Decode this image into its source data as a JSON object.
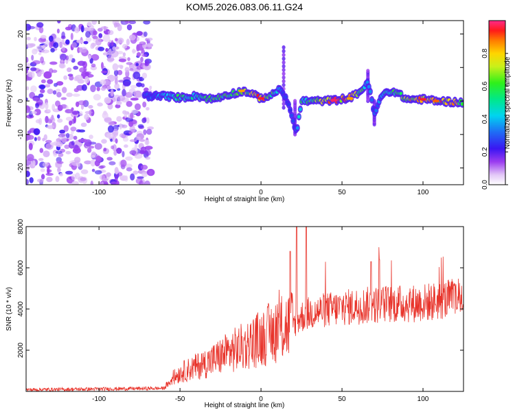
{
  "chart_data": [
    {
      "type": "heatmap",
      "title": "KOM5.2026.083.06.11.G24",
      "xlabel": "Height of straight line (km)",
      "ylabel": "Frequency (Hz)",
      "xlim": [
        -145,
        125
      ],
      "ylim": [
        -25,
        24
      ],
      "xticks": [
        -100,
        -50,
        0,
        50,
        100
      ],
      "xtick_labels": [
        "-100",
        "-50",
        "0",
        "50",
        "100"
      ],
      "yticks": [
        -20,
        -10,
        0,
        10,
        20
      ],
      "ytick_labels": [
        "-20",
        "-10",
        "0",
        "10",
        "20"
      ],
      "colorbar": {
        "label": "Normalized spectral amplitude",
        "range": [
          0,
          1
        ],
        "ticks": [
          0,
          0.2,
          0.4,
          0.6,
          0.8
        ],
        "tick_labels": [
          "0.0",
          "0.2",
          "0.4",
          "0.6",
          "0.8"
        ]
      },
      "noise_region_x": [
        -145,
        -70
      ],
      "ridge": {
        "x": [
          -72,
          -60,
          -50,
          -40,
          -30,
          -20,
          -10,
          0,
          8,
          12,
          16,
          20,
          22,
          25,
          35,
          45,
          55,
          62,
          66,
          70,
          75,
          82,
          90,
          100,
          110,
          125
        ],
        "freq": [
          1.5,
          1.5,
          1.0,
          1.5,
          0.5,
          2.0,
          3.0,
          0.8,
          2.0,
          4.0,
          0.0,
          -6.0,
          -9.5,
          0.0,
          0.0,
          0.2,
          1.0,
          3.0,
          6.0,
          -4.0,
          2.0,
          3.0,
          0.5,
          0.5,
          0.0,
          -0.5
        ],
        "amplitude": [
          0.3,
          0.45,
          0.6,
          0.5,
          0.65,
          0.6,
          0.7,
          0.95,
          0.6,
          0.4,
          0.3,
          0.3,
          0.35,
          0.55,
          0.7,
          0.98,
          0.9,
          0.7,
          0.4,
          0.3,
          0.5,
          0.6,
          0.8,
          0.95,
          0.9,
          0.8
        ]
      },
      "spikes": [
        {
          "x": 14,
          "freq_range": [
            -2,
            16
          ]
        },
        {
          "x": 21,
          "freq_range": [
            -10,
            0
          ]
        },
        {
          "x": 66,
          "freq_range": [
            0,
            9
          ]
        },
        {
          "x": 70,
          "freq_range": [
            -7,
            0
          ]
        }
      ]
    },
    {
      "type": "line",
      "xlabel": "Height of straight line (km)",
      "ylabel": "SNR (10 * v/v)",
      "xlim": [
        -145,
        125
      ],
      "ylim": [
        0,
        8000
      ],
      "xticks": [
        -100,
        -50,
        0,
        50,
        100
      ],
      "xtick_labels": [
        "-100",
        "-50",
        "0",
        "50",
        "100"
      ],
      "yticks": [
        2000,
        4000,
        6000,
        8000
      ],
      "ytick_labels": [
        "2000",
        "4000",
        "6000",
        "8000"
      ],
      "series": [
        {
          "name": "SNR",
          "color": "#e8332a",
          "x": [
            -145,
            -60,
            -55,
            -50,
            -40,
            -30,
            -20,
            -10,
            0,
            10,
            20,
            24,
            30,
            40,
            50,
            60,
            70,
            80,
            90,
            100,
            110,
            125
          ],
          "y": [
            80,
            150,
            600,
            900,
            1200,
            1500,
            1900,
            2200,
            2600,
            3000,
            3300,
            3600,
            3800,
            3950,
            4050,
            4150,
            4200,
            4250,
            4250,
            4300,
            4400,
            4600
          ]
        }
      ],
      "peaks": [
        {
          "x": 22,
          "y": 8000
        },
        {
          "x": 28,
          "y": 8000
        },
        {
          "x": 18,
          "y": 6800
        },
        {
          "x": 73,
          "y": 6400
        },
        {
          "x": 68,
          "y": 6300
        }
      ]
    }
  ]
}
